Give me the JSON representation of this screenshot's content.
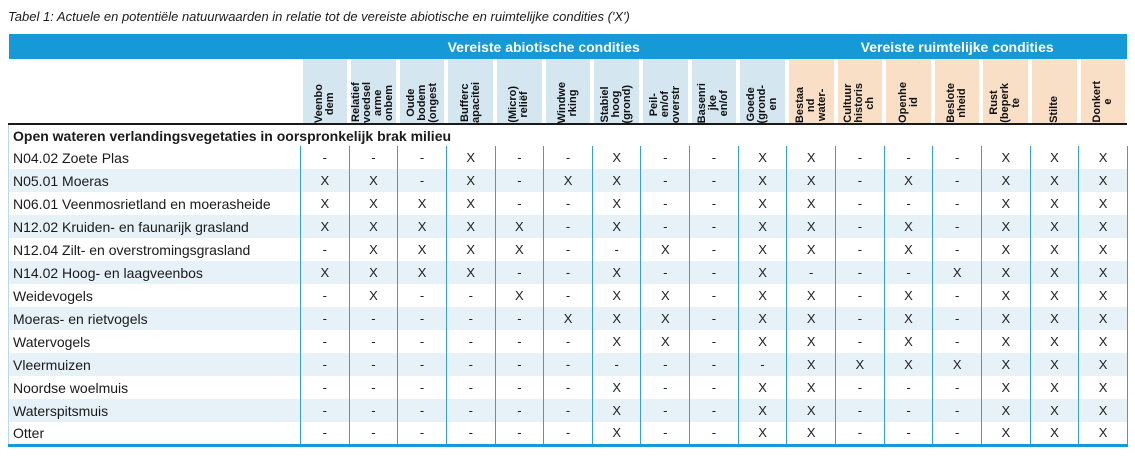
{
  "title": "Tabel 1: Actuele en potentiële natuurwaarden in relatie tot de vereiste abiotische en ruimtelijke condities ('X')",
  "colors": {
    "band_blue": "#1599d7",
    "abiotic_bg": "#d4e6f0",
    "spatial_bg": "#f9dfc6",
    "alt_row": "#e7f1f8",
    "sep": "#3a9fc9",
    "dark_border": "#1a1a1a",
    "light_left": "#bcd9ea"
  },
  "table": {
    "groups": [
      {
        "label": "Vereiste abiotische condities",
        "span": 10
      },
      {
        "label": "Vereiste ruimtelijke condities",
        "span": 7
      }
    ],
    "columns": [
      {
        "lines": "Veenbo\ndem",
        "group": "abiotic"
      },
      {
        "lines": "Relatief\nvoedsel\narme\nonbem",
        "group": "abiotic"
      },
      {
        "lines": "Oude\nbodem\n(ongest",
        "group": "abiotic"
      },
      {
        "lines": "Bufferc\napacitei",
        "group": "abiotic"
      },
      {
        "lines": "(Micro)\nreliëf",
        "group": "abiotic"
      },
      {
        "lines": "Windwe\nrking",
        "group": "abiotic"
      },
      {
        "lines": "Stabiel\nhoog\n(grond)",
        "group": "abiotic"
      },
      {
        "lines": "Peil-\nen/of\noverstr",
        "group": "abiotic"
      },
      {
        "lines": "Basenri\njke\nen/of",
        "group": "abiotic"
      },
      {
        "lines": "Goede\n(grond-\nen",
        "group": "abiotic"
      },
      {
        "lines": "Bestaa\nnd\nwater-",
        "group": "spatial"
      },
      {
        "lines": "Cultuur\nhistoris\nch",
        "group": "spatial"
      },
      {
        "lines": "Openhe\nid",
        "group": "spatial"
      },
      {
        "lines": "Beslote\nnheid",
        "group": "spatial"
      },
      {
        "lines": "Rust\n(beperk\nte",
        "group": "spatial"
      },
      {
        "lines": "Stilte",
        "group": "spatial"
      },
      {
        "lines": "Donkert\ne",
        "group": "spatial"
      }
    ],
    "section_header": "Open wateren verlandingsvegetaties in oorspronkelijk brak milieu",
    "rows": [
      {
        "label": "N04.02 Zoete Plas",
        "values": [
          "-",
          "-",
          "-",
          "X",
          "-",
          "-",
          "X",
          "-",
          "-",
          "X",
          "X",
          "-",
          "-",
          "-",
          "X",
          "X",
          "X"
        ]
      },
      {
        "label": "N05.01 Moeras",
        "values": [
          "X",
          "X",
          "-",
          "X",
          "-",
          "X",
          "X",
          "-",
          "-",
          "X",
          "X",
          "-",
          "X",
          "-",
          "X",
          "X",
          "X"
        ]
      },
      {
        "label": "N06.01 Veenmosrietland en moerasheide",
        "values": [
          "X",
          "X",
          "X",
          "X",
          "-",
          "-",
          "X",
          "-",
          "-",
          "X",
          "X",
          "-",
          "-",
          "-",
          "X",
          "X",
          "X"
        ]
      },
      {
        "label": "N12.02 Kruiden- en faunarijk grasland",
        "values": [
          "X",
          "X",
          "X",
          "X",
          "X",
          "-",
          "X",
          "-",
          "-",
          "X",
          "X",
          "-",
          "X",
          "-",
          "X",
          "X",
          "X"
        ]
      },
      {
        "label": "N12.04 Zilt- en overstromingsgrasland",
        "values": [
          "-",
          "X",
          "X",
          "X",
          "X",
          "-",
          "-",
          "X",
          "-",
          "X",
          "X",
          "-",
          "X",
          "-",
          "X",
          "X",
          "X"
        ]
      },
      {
        "label": "N14.02 Hoog- en laagveenbos",
        "values": [
          "X",
          "X",
          "X",
          "X",
          "-",
          "-",
          "X",
          "-",
          "-",
          "X",
          "-",
          "-",
          "-",
          "X",
          "X",
          "X",
          "X"
        ]
      },
      {
        "label": "Weidevogels",
        "values": [
          "-",
          "X",
          "-",
          "-",
          "X",
          "-",
          "X",
          "X",
          "-",
          "X",
          "X",
          "-",
          "X",
          "-",
          "X",
          "X",
          "X"
        ]
      },
      {
        "label": "Moeras- en rietvogels",
        "values": [
          "-",
          "-",
          "-",
          "-",
          "-",
          "X",
          "X",
          "X",
          "-",
          "X",
          "X",
          "-",
          "X",
          "-",
          "X",
          "X",
          "X"
        ]
      },
      {
        "label": "Watervogels",
        "values": [
          "-",
          "-",
          "-",
          "-",
          "-",
          "-",
          "X",
          "X",
          "-",
          "X",
          "X",
          "-",
          "X",
          "-",
          "X",
          "X",
          "X"
        ]
      },
      {
        "label": "Vleermuizen",
        "values": [
          "-",
          "-",
          "-",
          "-",
          "-",
          "-",
          "-",
          "-",
          "-",
          "-",
          "X",
          "X",
          "X",
          "X",
          "X",
          "X",
          "X"
        ]
      },
      {
        "label": "Noordse woelmuis",
        "values": [
          "-",
          "-",
          "-",
          "-",
          "-",
          "-",
          "X",
          "-",
          "-",
          "X",
          "X",
          "-",
          "-",
          "-",
          "X",
          "X",
          "X"
        ]
      },
      {
        "label": "Waterspitsmuis",
        "values": [
          "-",
          "-",
          "-",
          "-",
          "-",
          "-",
          "X",
          "-",
          "-",
          "X",
          "X",
          "-",
          "-",
          "-",
          "X",
          "X",
          "X"
        ]
      },
      {
        "label": "Otter",
        "values": [
          "-",
          "-",
          "-",
          "-",
          "-",
          "-",
          "X",
          "-",
          "-",
          "X",
          "X",
          "-",
          "-",
          "-",
          "X",
          "X",
          "X"
        ]
      }
    ]
  }
}
